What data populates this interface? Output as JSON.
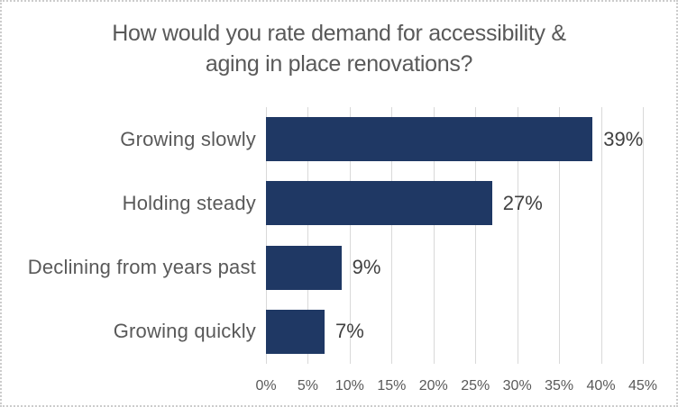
{
  "title": {
    "line1": "How would you rate demand for accessibility &",
    "line2": "aging in place renovations?"
  },
  "chart_data": {
    "type": "bar",
    "orientation": "horizontal",
    "title": "How would you rate demand for accessibility & aging in place renovations?",
    "categories": [
      "Growing slowly",
      "Holding steady",
      "Declining from years past",
      "Growing quickly"
    ],
    "values": [
      39,
      27,
      9,
      7
    ],
    "data_labels": [
      "39%",
      "27%",
      "9%",
      "7%"
    ],
    "xlabel": "",
    "ylabel": "",
    "xlim": [
      0,
      45
    ],
    "x_tick_step": 5,
    "x_tick_labels": [
      "0%",
      "5%",
      "10%",
      "15%",
      "20%",
      "25%",
      "30%",
      "35%",
      "40%",
      "45%"
    ],
    "grid": true,
    "legend": false,
    "colors": {
      "bar": "#1f3864",
      "gridline": "#d9d9d9",
      "title_text": "#595959",
      "category_text": "#595959",
      "data_label_text": "#404040",
      "axis_text": "#595959",
      "background": "#ffffff",
      "border": "#cccccc"
    }
  }
}
